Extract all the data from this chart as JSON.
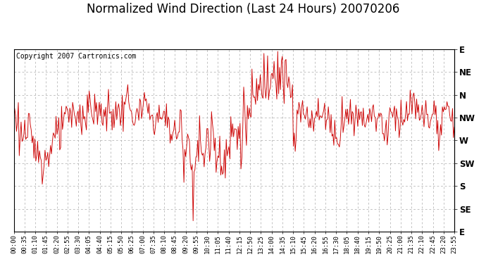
{
  "title": "Normalized Wind Direction (Last 24 Hours) 20070206",
  "copyright": "Copyright 2007 Cartronics.com",
  "line_color": "#CC0000",
  "background_color": "#ffffff",
  "grid_color": "#aaaaaa",
  "ylabel_directions": [
    "E",
    "SE",
    "S",
    "SW",
    "W",
    "NW",
    "N",
    "NE",
    "E"
  ],
  "ytick_positions": [
    0,
    1,
    2,
    3,
    4,
    5,
    6,
    7,
    8
  ],
  "xtick_labels": [
    "00:00",
    "00:35",
    "01:10",
    "01:45",
    "02:20",
    "02:55",
    "03:30",
    "04:05",
    "04:40",
    "05:15",
    "05:50",
    "06:25",
    "07:00",
    "07:35",
    "08:10",
    "08:45",
    "09:20",
    "09:55",
    "10:30",
    "11:05",
    "11:40",
    "12:15",
    "12:50",
    "13:25",
    "14:00",
    "14:35",
    "15:10",
    "15:45",
    "16:20",
    "16:55",
    "17:30",
    "18:05",
    "18:40",
    "19:15",
    "19:50",
    "20:25",
    "21:00",
    "21:35",
    "22:10",
    "22:45",
    "23:20",
    "23:55"
  ],
  "title_fontsize": 12,
  "copyright_fontsize": 7,
  "tick_fontsize": 6.5,
  "ylabel_fontsize": 8.5,
  "line_width": 0.65,
  "figsize": [
    6.9,
    3.75
  ],
  "dpi": 100
}
